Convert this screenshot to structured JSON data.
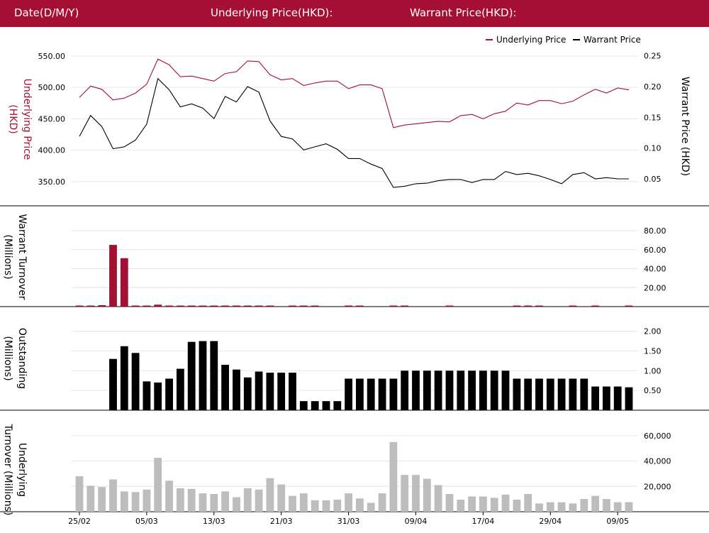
{
  "header": {
    "date_label": "Date(D/M/Y)",
    "underlying_label": "Underlying Price(HKD):",
    "warrant_label": "Warrant Price(HKD):"
  },
  "colors": {
    "header_bg": "#a50f33",
    "underlying": "#a50f33",
    "warrant": "#000000",
    "warrant_turnover": "#a50f33",
    "outstanding": "#000000",
    "underlying_turnover": "#bdbdbd",
    "grid": "#e6e6e6"
  },
  "chart_data": [
    {
      "type": "line",
      "legend": [
        {
          "name": "Underlying Price",
          "color": "#a50f33"
        },
        {
          "name": "Warrant Price",
          "color": "#000000"
        }
      ],
      "legend_position": "top-right",
      "left_axis": {
        "label": "Underlying Price (HKD)",
        "ticks": [
          "550.00",
          "500.00",
          "450.00",
          "400.00",
          "350.00"
        ],
        "range": [
          325,
          560
        ]
      },
      "right_axis": {
        "label": "Warrant Price (HKD)",
        "ticks": [
          "0.25",
          "0.20",
          "0.15",
          "0.10",
          "0.05"
        ],
        "range": [
          0.02,
          0.26
        ]
      },
      "series": [
        {
          "name": "Underlying Price",
          "axis": "left",
          "values": [
            484,
            502,
            497,
            480,
            483,
            491,
            505,
            545,
            536,
            517,
            518,
            514,
            510,
            522,
            525,
            542,
            541,
            520,
            512,
            514,
            503,
            507,
            510,
            510,
            498,
            504,
            504,
            498,
            436,
            440,
            442,
            444,
            446,
            445,
            455,
            457,
            450,
            458,
            462,
            475,
            472,
            479,
            479,
            474,
            478,
            488,
            497,
            491,
            499,
            496
          ]
        },
        {
          "name": "Warrant Price",
          "axis": "right",
          "values": [
            0.119,
            0.153,
            0.135,
            0.099,
            0.102,
            0.113,
            0.139,
            0.213,
            0.195,
            0.167,
            0.172,
            0.165,
            0.148,
            0.184,
            0.175,
            0.2,
            0.191,
            0.144,
            0.119,
            0.115,
            0.097,
            0.102,
            0.107,
            0.098,
            0.083,
            0.083,
            0.074,
            0.067,
            0.036,
            0.038,
            0.042,
            0.043,
            0.047,
            0.049,
            0.049,
            0.044,
            0.049,
            0.049,
            0.062,
            0.057,
            0.059,
            0.055,
            0.049,
            0.042,
            0.057,
            0.06,
            0.05,
            0.052,
            0.05,
            0.05
          ]
        }
      ]
    },
    {
      "type": "bar",
      "ylabel": "Warrant Turnover (Millions)",
      "ticks": [
        "80.00",
        "60.00",
        "40.00",
        "20.00"
      ],
      "range": [
        0,
        95
      ],
      "values": [
        0.5,
        0.5,
        1.5,
        65,
        51,
        0.5,
        0.5,
        2,
        0.5,
        0.5,
        0.5,
        0.5,
        0.5,
        0.5,
        0.5,
        0.5,
        0.5,
        0.5,
        0,
        0.5,
        0.5,
        0.5,
        0,
        0,
        0.5,
        0.5,
        0,
        0,
        0.5,
        0.5,
        0,
        0,
        0,
        0.5,
        0,
        0,
        0,
        0,
        0,
        0.5,
        0.5,
        0.5,
        0,
        0,
        0.5,
        0,
        0.5,
        0,
        0,
        0.5
      ]
    },
    {
      "type": "bar",
      "ylabel": "Outstanding (Millions)",
      "ticks": [
        "2.00",
        "1.50",
        "1.00",
        "0.50"
      ],
      "range": [
        0,
        2.3
      ],
      "values": [
        0,
        0,
        0,
        1.3,
        1.62,
        1.45,
        0.73,
        0.7,
        0.8,
        1.05,
        1.73,
        1.75,
        1.75,
        1.15,
        1.03,
        0.83,
        0.98,
        0.95,
        0.95,
        0.95,
        0.23,
        0.23,
        0.23,
        0.23,
        0.8,
        0.8,
        0.8,
        0.8,
        0.8,
        1.0,
        1.0,
        1.0,
        1.0,
        1.0,
        1.0,
        1.0,
        1.0,
        1.0,
        1.0,
        0.8,
        0.8,
        0.8,
        0.8,
        0.8,
        0.8,
        0.8,
        0.6,
        0.6,
        0.6,
        0.58
      ]
    },
    {
      "type": "bar",
      "ylabel": "Underlying Turnover (Millions)",
      "ticks": [
        "60,000",
        "40,000",
        "20,000"
      ],
      "range": [
        0,
        70000
      ],
      "values": [
        28000,
        20500,
        19500,
        25500,
        16000,
        15500,
        17500,
        42500,
        24500,
        18500,
        18000,
        14500,
        14000,
        16000,
        11500,
        18500,
        17500,
        26500,
        21500,
        12500,
        14500,
        9000,
        9000,
        9500,
        14500,
        10500,
        7000,
        14500,
        55000,
        29000,
        29000,
        26000,
        21000,
        14000,
        9500,
        12000,
        12000,
        11000,
        13500,
        9500,
        14000,
        6500,
        7500,
        7500,
        6500,
        10000,
        12500,
        10000,
        7500,
        7500
      ]
    },
    {
      "type": "axis",
      "x_labels": [
        "25/02",
        "05/03",
        "13/03",
        "21/03",
        "31/03",
        "09/04",
        "17/04",
        "29/04",
        "09/05"
      ],
      "x_label_index": [
        0,
        6,
        12,
        18,
        24,
        30,
        36,
        42,
        48
      ]
    }
  ]
}
